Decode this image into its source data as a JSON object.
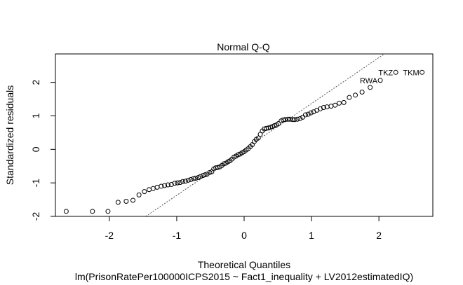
{
  "chart_data": {
    "type": "scatter",
    "title": "Normal Q-Q",
    "xlabel": "Theoretical Quantiles",
    "ylabel": "Standardized residuals",
    "subtitle": "lm(PrisonRatePer100000ICPS2015 ~ Fact1_inequality + LV2012estimatedIQ)",
    "xlim": [
      -2.8,
      2.8
    ],
    "ylim": [
      -2.0,
      2.85
    ],
    "xticks": [
      -2,
      -1,
      0,
      1,
      2
    ],
    "yticks": [
      -2,
      -1,
      0,
      1,
      2
    ],
    "reference_line": {
      "style": "dotted",
      "intercept": 0.0,
      "slope": 1.37
    },
    "labeled_points": [
      {
        "label": "TKM",
        "x": 2.64,
        "y": 2.3
      },
      {
        "label": "TKZ",
        "x": 2.25,
        "y": 2.3
      },
      {
        "label": "RWA",
        "x": 2.02,
        "y": 2.06
      }
    ],
    "series": [
      {
        "x": [
          -2.64,
          -2.25,
          -2.02,
          -1.87,
          -1.75,
          -1.65,
          -1.56,
          -1.48,
          -1.41,
          -1.35,
          -1.29,
          -1.23,
          -1.18,
          -1.13,
          -1.08,
          -1.03,
          -0.99,
          -0.95,
          -0.91,
          -0.87,
          -0.83,
          -0.79,
          -0.75,
          -0.72,
          -0.68,
          -0.65,
          -0.61,
          -0.58,
          -0.55,
          -0.51,
          -0.48,
          -0.45,
          -0.42,
          -0.39,
          -0.36,
          -0.33,
          -0.3,
          -0.27,
          -0.24,
          -0.21,
          -0.18,
          -0.15,
          -0.12,
          -0.09,
          -0.06,
          -0.03,
          0.0,
          0.03,
          0.06,
          0.09,
          0.12,
          0.15,
          0.18,
          0.21,
          0.24,
          0.27,
          0.3,
          0.33,
          0.36,
          0.39,
          0.42,
          0.45,
          0.48,
          0.51,
          0.55,
          0.58,
          0.61,
          0.65,
          0.68,
          0.72,
          0.75,
          0.79,
          0.83,
          0.87,
          0.91,
          0.95,
          0.99,
          1.03,
          1.08,
          1.13,
          1.18,
          1.23,
          1.29,
          1.35,
          1.41,
          1.48,
          1.56,
          1.65,
          1.75,
          1.87,
          2.02,
          2.25,
          2.64
        ],
        "y": [
          -1.85,
          -1.85,
          -1.85,
          -1.58,
          -1.55,
          -1.52,
          -1.36,
          -1.26,
          -1.2,
          -1.17,
          -1.13,
          -1.1,
          -1.08,
          -1.06,
          -1.05,
          -1.01,
          -1.0,
          -0.99,
          -0.96,
          -0.95,
          -0.92,
          -0.9,
          -0.87,
          -0.86,
          -0.84,
          -0.81,
          -0.78,
          -0.76,
          -0.74,
          -0.69,
          -0.67,
          -0.58,
          -0.55,
          -0.54,
          -0.52,
          -0.48,
          -0.43,
          -0.41,
          -0.37,
          -0.34,
          -0.29,
          -0.23,
          -0.2,
          -0.16,
          -0.14,
          -0.1,
          -0.07,
          -0.02,
          0.02,
          0.08,
          0.14,
          0.23,
          0.3,
          0.34,
          0.45,
          0.55,
          0.61,
          0.63,
          0.64,
          0.66,
          0.68,
          0.71,
          0.73,
          0.77,
          0.85,
          0.88,
          0.89,
          0.9,
          0.9,
          0.89,
          0.89,
          0.9,
          0.92,
          0.96,
          1.03,
          1.05,
          1.09,
          1.12,
          1.17,
          1.21,
          1.25,
          1.27,
          1.29,
          1.32,
          1.38,
          1.4,
          1.55,
          1.62,
          1.71,
          1.85,
          2.06,
          2.3,
          2.3
        ]
      }
    ]
  }
}
